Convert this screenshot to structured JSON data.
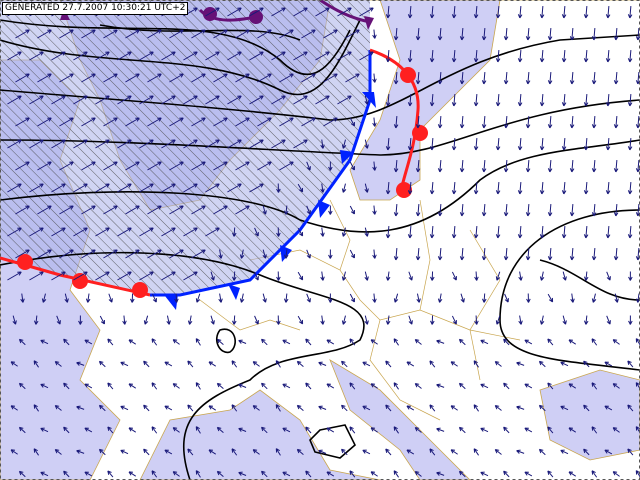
{
  "header": {
    "label": "GENERATED 27.7.2007 10:30:21 UTC+2"
  }
}
